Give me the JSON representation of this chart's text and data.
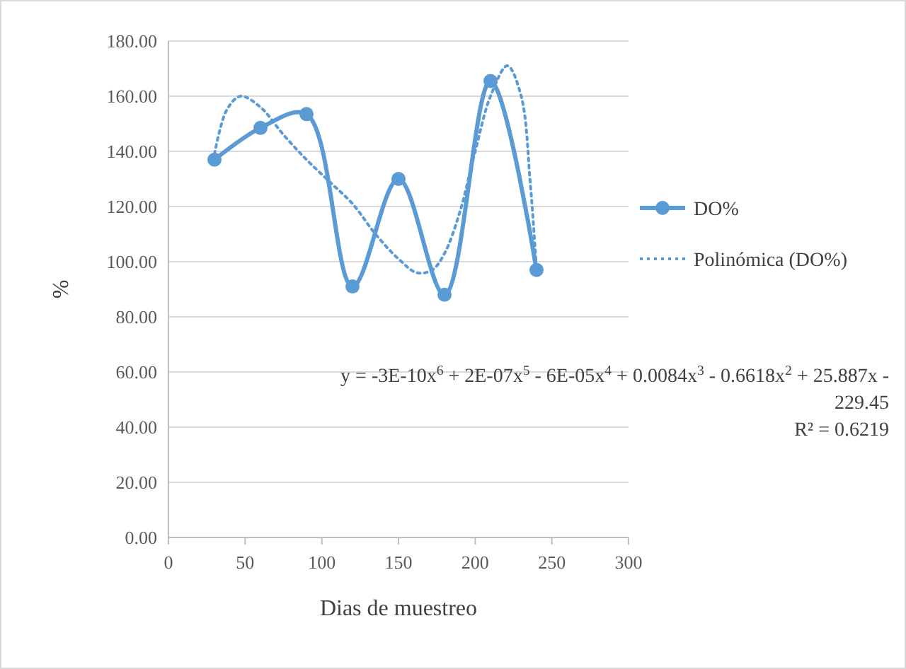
{
  "chart_data": {
    "type": "line",
    "xlabel": "Dias de muestreo",
    "ylabel": "%",
    "xlim": [
      0,
      300
    ],
    "xticks": [
      0,
      50,
      100,
      150,
      200,
      250,
      300
    ],
    "ylim": [
      0,
      180
    ],
    "yticks": [
      {
        "value": 0,
        "label": "0.00"
      },
      {
        "value": 20,
        "label": "20.00"
      },
      {
        "value": 40,
        "label": "40.00"
      },
      {
        "value": 60,
        "label": "60.00"
      },
      {
        "value": 80,
        "label": "80.00"
      },
      {
        "value": 100,
        "label": "100.00"
      },
      {
        "value": 120,
        "label": "120.00"
      },
      {
        "value": 140,
        "label": "140.00"
      },
      {
        "value": 160,
        "label": "160.00"
      },
      {
        "value": 180,
        "label": "180.00"
      }
    ],
    "grid": "y",
    "legend": "right",
    "series": [
      {
        "name": "DO%",
        "color": "#5b9bd5",
        "marker": "circle",
        "line_style": "solid",
        "x": [
          30,
          60,
          90,
          120,
          150,
          180,
          210,
          240
        ],
        "values": [
          137,
          148.5,
          153.5,
          91,
          130,
          88,
          165.5,
          97
        ]
      },
      {
        "name": "Polinómica (DO%)",
        "color": "#5b9bd5",
        "marker": "none",
        "line_style": "dotted",
        "x": [
          30,
          38,
          47,
          60,
          75,
          90,
          105,
          120,
          135,
          150,
          162,
          172,
          180,
          190,
          200,
          210,
          221,
          230,
          236,
          240
        ],
        "values": [
          139,
          155,
          160,
          156,
          146,
          137,
          129,
          121,
          110,
          101,
          96,
          97,
          103,
          118,
          140,
          160,
          171,
          160,
          128,
          97
        ]
      }
    ],
    "annotations": [
      "y = -3E-10x$^{6}$ + 2E-07x$^{5}$ - 6E-05x$^{4}$ + 0.0084x$^{3}$ - 0.6618x$^{2}$ + 25.887x - 229.45",
      "R² = 0.6219"
    ]
  }
}
